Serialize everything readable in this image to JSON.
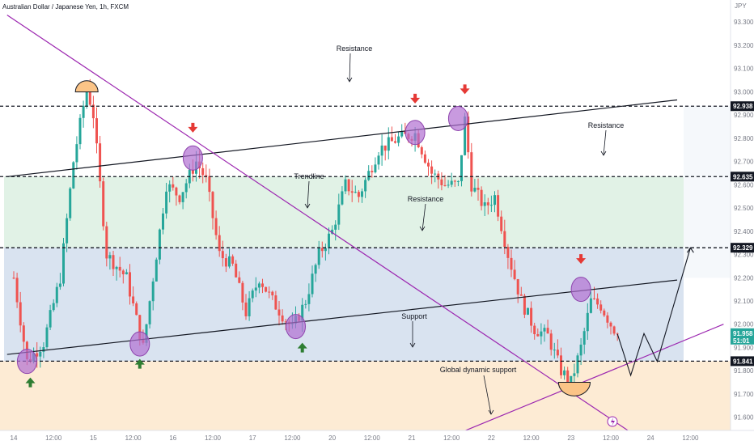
{
  "header": {
    "instrument": "Australian Dollar / Japanese Yen, 1h, FXCM",
    "currency": "JPY"
  },
  "chart_data": {
    "type": "candlestick",
    "y_ticks": [
      "93.300",
      "93.200",
      "93.100",
      "93.000",
      "92.900",
      "92.800",
      "92.700",
      "92.600",
      "92.500",
      "92.400",
      "92.300",
      "92.200",
      "92.100",
      "92.000",
      "91.900",
      "91.800",
      "91.700",
      "91.600"
    ],
    "y_tick_values": [
      93.3,
      93.2,
      93.1,
      93.0,
      92.9,
      92.8,
      92.7,
      92.6,
      92.5,
      92.4,
      92.3,
      92.2,
      92.1,
      92.0,
      91.9,
      91.8,
      91.7,
      91.6
    ],
    "ylim": [
      91.55,
      93.36
    ],
    "x_ticks": [
      {
        "label": "14",
        "at": 0
      },
      {
        "label": "12:00",
        "at": 12
      },
      {
        "label": "15",
        "at": 24
      },
      {
        "label": "12:00",
        "at": 36
      },
      {
        "label": "16",
        "at": 48
      },
      {
        "label": "12:00",
        "at": 60
      },
      {
        "label": "17",
        "at": 72
      },
      {
        "label": "12:00",
        "at": 84
      },
      {
        "label": "20",
        "at": 96
      },
      {
        "label": "12:00",
        "at": 108
      },
      {
        "label": "21",
        "at": 120
      },
      {
        "label": "12:00",
        "at": 132
      },
      {
        "label": "22",
        "at": 144
      },
      {
        "label": "12:00",
        "at": 156
      },
      {
        "label": "23",
        "at": 168
      },
      {
        "label": "12:00",
        "at": 180
      },
      {
        "label": "24",
        "at": 192
      },
      {
        "label": "12:00",
        "at": 204
      }
    ],
    "colors": {
      "up": "#26a69a",
      "down": "#ef5350",
      "trendline": "#9c27b0",
      "channel": "#131722",
      "level": "#131722"
    },
    "price_levels": [
      {
        "value": 92.938,
        "label": "92.938"
      },
      {
        "value": 92.635,
        "label": "92.635"
      },
      {
        "value": 92.329,
        "label": "92.329"
      },
      {
        "value": 91.841,
        "label": "91.841"
      }
    ],
    "current_price": {
      "value": 91.958,
      "label": "91.958",
      "countdown": "51:01",
      "color": "#26a69a"
    },
    "anchors": [
      {
        "t": 0,
        "p": 92.2
      },
      {
        "t": 4,
        "p": 91.84
      },
      {
        "t": 9,
        "p": 91.92
      },
      {
        "t": 14,
        "p": 92.2
      },
      {
        "t": 18,
        "p": 92.7
      },
      {
        "t": 22,
        "p": 93.02
      },
      {
        "t": 24,
        "p": 92.9
      },
      {
        "t": 28,
        "p": 92.3
      },
      {
        "t": 34,
        "p": 92.2
      },
      {
        "t": 39,
        "p": 91.9
      },
      {
        "t": 43,
        "p": 92.3
      },
      {
        "t": 46,
        "p": 92.6
      },
      {
        "t": 50,
        "p": 92.55
      },
      {
        "t": 55,
        "p": 92.7
      },
      {
        "t": 58,
        "p": 92.62
      },
      {
        "t": 62,
        "p": 92.3
      },
      {
        "t": 66,
        "p": 92.25
      },
      {
        "t": 70,
        "p": 92.05
      },
      {
        "t": 74,
        "p": 92.2
      },
      {
        "t": 78,
        "p": 92.1
      },
      {
        "t": 84,
        "p": 91.98
      },
      {
        "t": 88,
        "p": 92.1
      },
      {
        "t": 92,
        "p": 92.3
      },
      {
        "t": 96,
        "p": 92.4
      },
      {
        "t": 100,
        "p": 92.6
      },
      {
        "t": 104,
        "p": 92.55
      },
      {
        "t": 110,
        "p": 92.75
      },
      {
        "t": 116,
        "p": 92.8
      },
      {
        "t": 121,
        "p": 92.82
      },
      {
        "t": 126,
        "p": 92.65
      },
      {
        "t": 130,
        "p": 92.6
      },
      {
        "t": 134,
        "p": 92.6
      },
      {
        "t": 136,
        "p": 92.88
      },
      {
        "t": 138,
        "p": 92.6
      },
      {
        "t": 142,
        "p": 92.5
      },
      {
        "t": 145,
        "p": 92.55
      },
      {
        "t": 149,
        "p": 92.3
      },
      {
        "t": 153,
        "p": 92.1
      },
      {
        "t": 157,
        "p": 91.98
      },
      {
        "t": 161,
        "p": 91.95
      },
      {
        "t": 165,
        "p": 91.8
      },
      {
        "t": 168,
        "p": 91.75
      },
      {
        "t": 171,
        "p": 91.9
      },
      {
        "t": 174,
        "p": 92.1
      },
      {
        "t": 177,
        "p": 92.08
      },
      {
        "t": 180,
        "p": 92.0
      },
      {
        "t": 182,
        "p": 91.958
      }
    ],
    "channel_upper": [
      {
        "t": -2,
        "p": 92.635
      },
      {
        "t": 200,
        "p": 92.965
      }
    ],
    "channel_lower": [
      {
        "t": -2,
        "p": 91.87
      },
      {
        "t": 200,
        "p": 92.19
      }
    ],
    "descending_trendline": [
      {
        "t": -2,
        "p": 93.33
      },
      {
        "t": 186,
        "p": 91.535
      }
    ],
    "dynamic_support": [
      {
        "t": 134,
        "p": 91.53
      },
      {
        "t": 214,
        "p": 92.0
      }
    ],
    "projection": [
      {
        "t": 182,
        "p": 91.958
      },
      {
        "t": 186,
        "p": 91.78
      },
      {
        "t": 190,
        "p": 91.96
      },
      {
        "t": 194,
        "p": 91.84
      },
      {
        "t": 204,
        "p": 92.329
      }
    ],
    "annotations": {
      "resistance_top": "Resistance",
      "resistance_right": "Resistance",
      "resistance_mid": "Resistance",
      "trendline": "Trendline",
      "support": "Support",
      "global_support": "Global dynamic support"
    },
    "circles": [
      {
        "t": 4,
        "p": 91.84
      },
      {
        "t": 38,
        "p": 91.915
      },
      {
        "t": 54,
        "p": 92.715
      },
      {
        "t": 85,
        "p": 91.99
      },
      {
        "t": 121,
        "p": 92.825
      },
      {
        "t": 134,
        "p": 92.885
      },
      {
        "t": 171,
        "p": 92.15
      }
    ],
    "down_arrows": [
      {
        "t": 54,
        "p": 92.835
      },
      {
        "t": 121,
        "p": 92.96
      },
      {
        "t": 136,
        "p": 93.0
      },
      {
        "t": 171,
        "p": 92.27
      }
    ],
    "up_arrows": [
      {
        "t": 5,
        "p": 91.76
      },
      {
        "t": 38,
        "p": 91.84
      },
      {
        "t": 87,
        "p": 91.91
      }
    ],
    "semicircles": [
      {
        "t": 22,
        "p": 93.02,
        "dir": "up"
      },
      {
        "t": 169,
        "p": 91.75,
        "dir": "down"
      }
    ],
    "title": "",
    "xlabel": "",
    "ylabel": ""
  }
}
